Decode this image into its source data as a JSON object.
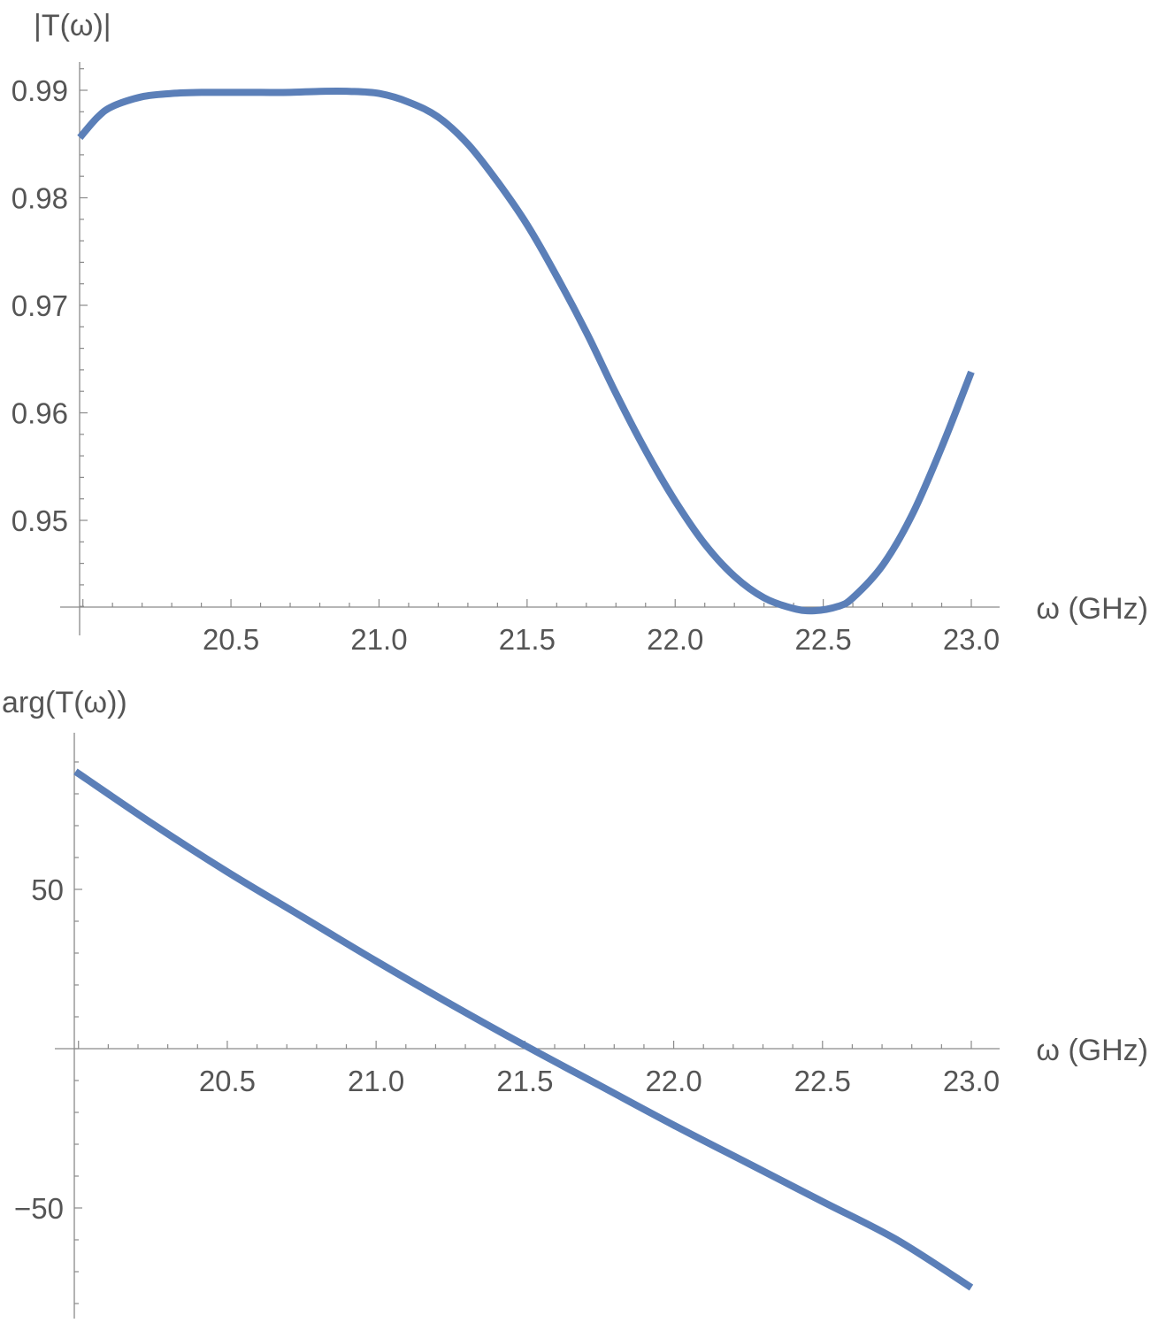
{
  "chart_data": [
    {
      "type": "line",
      "ylabel": "|T(ω)|",
      "xlabel": "ω (GHz)",
      "xlim": [
        19.98,
        23.0
      ],
      "ylim": [
        0.9415,
        0.9925
      ],
      "x_ticks": [
        20.5,
        21.0,
        21.5,
        22.0,
        22.5,
        23.0
      ],
      "x_tick_labels": [
        "20.5",
        "21.0",
        "21.5",
        "22.0",
        "22.5",
        "23.0"
      ],
      "y_ticks": [
        0.95,
        0.96,
        0.97,
        0.98,
        0.99
      ],
      "y_tick_labels": [
        "0.95",
        "0.96",
        "0.97",
        "0.98",
        "0.99"
      ],
      "color": "#5b7fb8",
      "series": [
        {
          "x": [
            19.99,
            20.05,
            20.1,
            20.2,
            20.3,
            20.4,
            20.5,
            20.6,
            20.7,
            20.8,
            20.9,
            21.0,
            21.1,
            21.2,
            21.3,
            21.4,
            21.5,
            21.6,
            21.7,
            21.8,
            21.9,
            22.0,
            22.1,
            22.2,
            22.3,
            22.4,
            22.47,
            22.55,
            22.6,
            22.7,
            22.8,
            22.9,
            23.0
          ],
          "y": [
            0.9856,
            0.9875,
            0.9885,
            0.9894,
            0.9897,
            0.9898,
            0.9898,
            0.9898,
            0.9898,
            0.9899,
            0.9899,
            0.9897,
            0.9889,
            0.9875,
            0.985,
            0.9815,
            0.9775,
            0.9727,
            0.9675,
            0.9618,
            0.9565,
            0.9518,
            0.9478,
            0.9448,
            0.9428,
            0.9418,
            0.9416,
            0.942,
            0.9428,
            0.9458,
            0.9505,
            0.9568,
            0.9638
          ]
        }
      ]
    },
    {
      "type": "line",
      "ylabel": "arg(T(ω))",
      "xlabel": "ω (GHz)",
      "xlim": [
        19.98,
        23.0
      ],
      "ylim": [
        -85,
        95
      ],
      "x_ticks": [
        20.5,
        21.0,
        21.5,
        22.0,
        22.5,
        23.0
      ],
      "x_tick_labels": [
        "20.5",
        "21.0",
        "21.5",
        "22.0",
        "22.5",
        "23.0"
      ],
      "y_ticks": [
        -50,
        50
      ],
      "y_tick_labels": [
        "−50",
        "50"
      ],
      "color": "#5b7fb8",
      "series": [
        {
          "x": [
            19.99,
            20.25,
            20.5,
            20.75,
            21.0,
            21.25,
            21.5,
            21.75,
            22.0,
            22.25,
            22.5,
            22.75,
            23.0
          ],
          "y": [
            87,
            70.5,
            55.5,
            41.5,
            27.5,
            14,
            1,
            -11.5,
            -24,
            -36,
            -48,
            -60,
            -75
          ]
        }
      ]
    }
  ]
}
